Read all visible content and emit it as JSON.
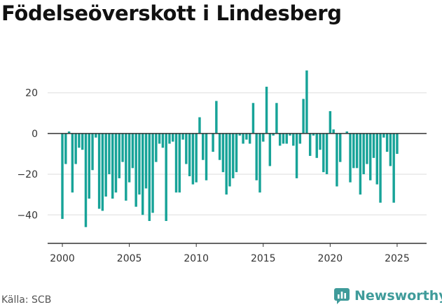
{
  "title": "Födelseöverskott i Lindesberg",
  "source": "Källa: SCB",
  "brand": {
    "name": "Newsworthy",
    "icon": "newsworthy-logo-icon"
  },
  "colors": {
    "bar": "#17a398",
    "axis": "#333333",
    "grid": "#dddddd",
    "brand": "#3f9b9a"
  },
  "chart_data": {
    "type": "bar",
    "xlabel": "",
    "ylabel": "",
    "xlim": [
      1998.9,
      2027.2
    ],
    "ylim": [
      -54,
      34
    ],
    "x_ticks": [
      2000,
      2005,
      2010,
      2015,
      2020,
      2025
    ],
    "x_tick_labels": [
      "2000",
      "2005",
      "2010",
      "2015",
      "2020",
      "2025"
    ],
    "y_ticks": [
      -40,
      -20,
      0,
      20
    ],
    "y_tick_labels": [
      "−40",
      "−20",
      "0",
      "20"
    ],
    "grid": "horizontal",
    "start": "2000-01",
    "frequency": "quarterly",
    "values": [
      -42,
      -15,
      1,
      -29,
      -15,
      -7,
      -8,
      -46,
      -32,
      -18,
      -2,
      -37,
      -38,
      -31,
      -20,
      -32,
      -29,
      -22,
      -14,
      -33,
      -24,
      -17,
      -36,
      -30,
      -40,
      -27,
      -43,
      -39,
      -14,
      -5,
      -7,
      -43,
      -5,
      -4,
      -29,
      -29,
      -3,
      -15,
      -21,
      -25,
      -24,
      8,
      -13,
      -23,
      0,
      -9,
      16,
      -13,
      -19,
      -30,
      -26,
      -22,
      -19,
      -1,
      -5,
      -3,
      -5,
      15,
      -23,
      -29,
      -4,
      23,
      -16,
      -1,
      15,
      -6,
      -5,
      -5,
      -1,
      -6,
      -22,
      -5,
      17,
      31,
      -11,
      -1,
      -12,
      -8,
      -19,
      -20,
      11,
      2,
      -26,
      -14,
      0,
      1,
      -24,
      -17,
      -17,
      -30,
      -20,
      -15,
      -23,
      -12,
      -25,
      -34,
      -2,
      -9,
      -16,
      -34,
      -10
    ]
  }
}
